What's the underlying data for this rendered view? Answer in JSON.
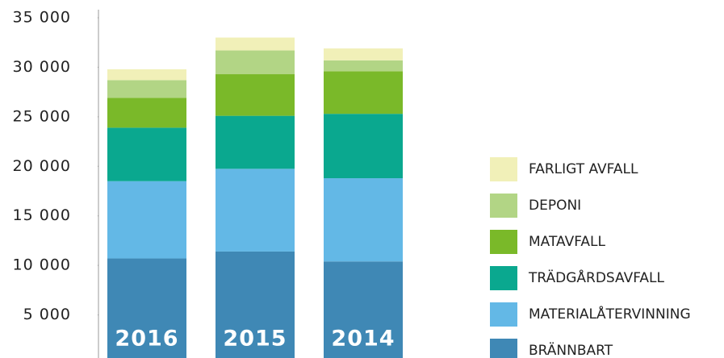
{
  "chart_data": {
    "type": "stacked-bar",
    "categories": [
      "2016",
      "2015",
      "2014"
    ],
    "series": [
      {
        "name": "BRÄNNBART",
        "color": "#3f88b5",
        "values": [
          10700,
          11400,
          10400
        ]
      },
      {
        "name": "MATERIALÅTERVINNING",
        "color": "#63b8e6",
        "values": [
          7800,
          8350,
          8400
        ]
      },
      {
        "name": "TRÄDGÅRDSAVFALL",
        "color": "#0aa88f",
        "values": [
          5400,
          5350,
          6500
        ]
      },
      {
        "name": "MATAVFALL",
        "color": "#7ab929",
        "values": [
          3000,
          4200,
          4300
        ]
      },
      {
        "name": "DEPONI",
        "color": "#b2d585",
        "values": [
          1800,
          2400,
          1100
        ]
      },
      {
        "name": "FARLIGT AVFALL",
        "color": "#f1f0b8",
        "values": [
          1100,
          1300,
          1200
        ]
      }
    ],
    "ylim": [
      0,
      35000
    ],
    "yticks": [
      {
        "value": 5000,
        "label": "5 000"
      },
      {
        "value": 10000,
        "label": "10 000"
      },
      {
        "value": 15000,
        "label": "15 000"
      },
      {
        "value": 20000,
        "label": "20 000"
      },
      {
        "value": 25000,
        "label": "25 000"
      },
      {
        "value": 30000,
        "label": "30 000"
      },
      {
        "value": 35000,
        "label": "35 000"
      }
    ]
  }
}
